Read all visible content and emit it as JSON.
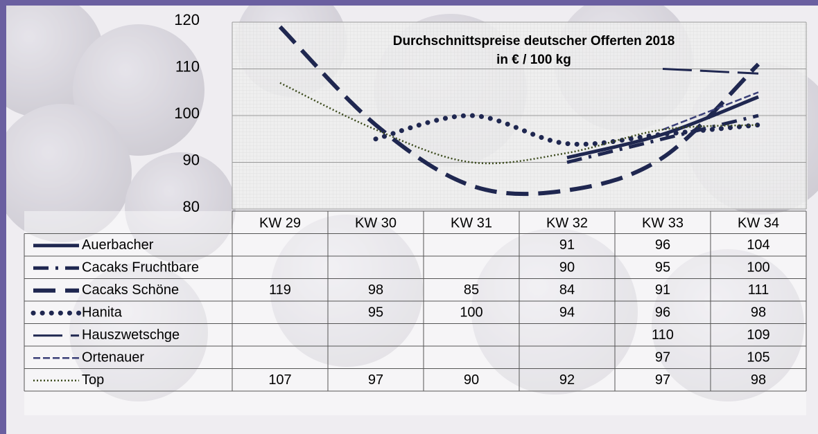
{
  "chart_data": {
    "type": "line",
    "title": "Durchschnittspreise deutscher Offerten 2018",
    "subtitle": "in € / 100 kg",
    "categories": [
      "KW 29",
      "KW 30",
      "KW 31",
      "KW 32",
      "KW 33",
      "KW 34"
    ],
    "ylim": [
      80,
      120
    ],
    "yticks": [
      80,
      90,
      100,
      110,
      120
    ],
    "grid": true,
    "series": [
      {
        "name": "Auerbacher",
        "color": "#1f2750",
        "values": [
          null,
          null,
          null,
          91,
          96,
          104
        ]
      },
      {
        "name": "Cacaks Fruchtbare",
        "color": "#1f2750",
        "values": [
          null,
          null,
          null,
          90,
          95,
          100
        ]
      },
      {
        "name": "Cacaks Schöne",
        "color": "#1f2750",
        "values": [
          119,
          98,
          85,
          84,
          91,
          111
        ]
      },
      {
        "name": "Hanita",
        "color": "#1f2750",
        "values": [
          null,
          95,
          100,
          94,
          96,
          98
        ]
      },
      {
        "name": "Hauszwetschge",
        "color": "#1f2750",
        "values": [
          null,
          null,
          null,
          null,
          110,
          109
        ]
      },
      {
        "name": "Ortenauer",
        "color": "#3a3f78",
        "values": [
          null,
          null,
          null,
          null,
          97,
          105
        ]
      },
      {
        "name": "Top",
        "color": "#3b4a1c",
        "values": [
          107,
          97,
          90,
          92,
          97,
          98
        ]
      }
    ]
  }
}
